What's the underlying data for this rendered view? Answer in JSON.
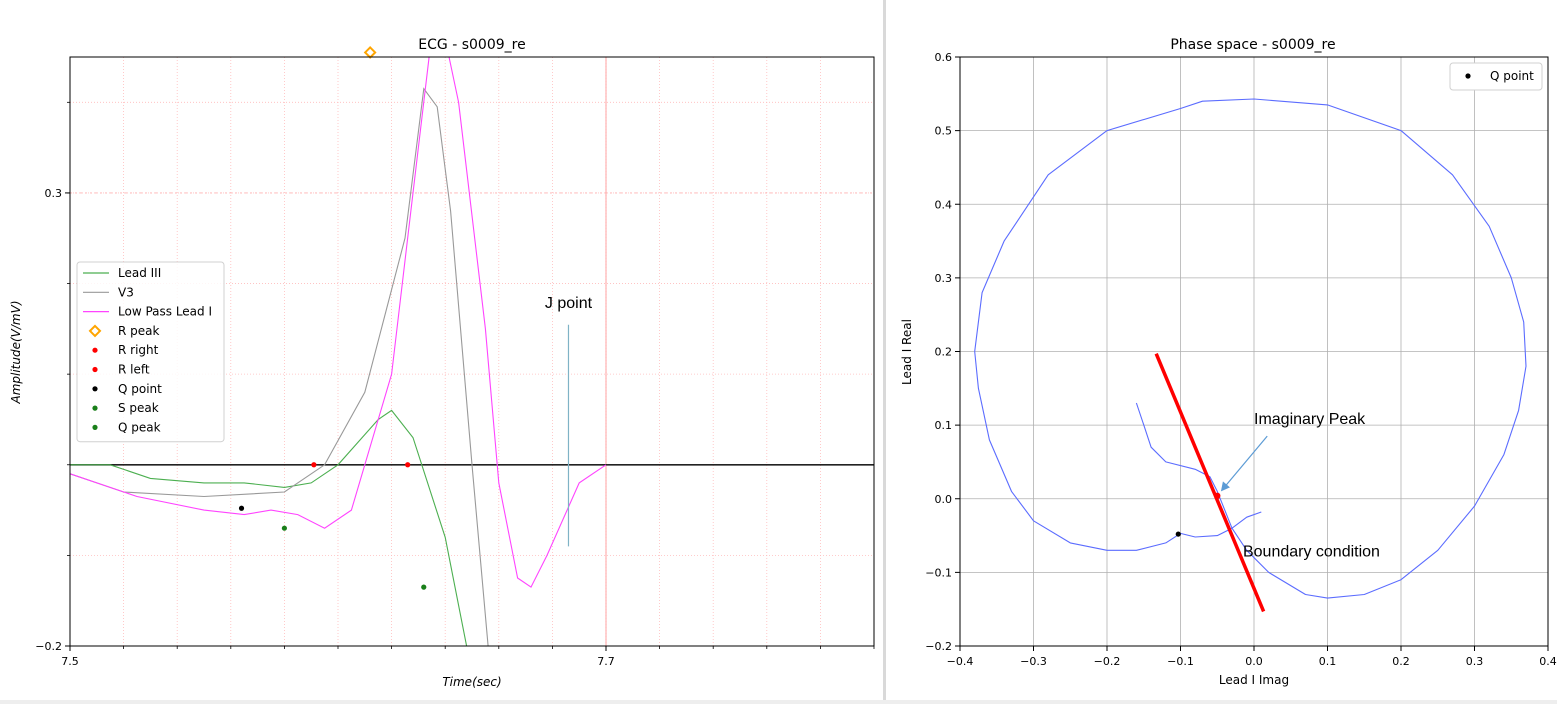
{
  "chart_data": [
    {
      "type": "line",
      "title": "ECG - s0009_re",
      "xlabel": "Time(sec)",
      "ylabel": "Amplitude(V/mV)",
      "xlim": [
        7.5,
        7.8
      ],
      "ylim": [
        -0.2,
        0.45
      ],
      "xticks": [
        7.5,
        7.7
      ],
      "yticks": [
        -0.2,
        0.3
      ],
      "grid": true,
      "legend_position": "center-left",
      "baseline": 0.0,
      "annotations": [
        {
          "text": "J point",
          "x": 7.686,
          "y": 0.16
        }
      ],
      "series": [
        {
          "name": "Lead III",
          "color": "#4caf50",
          "values": [
            [
              7.5,
              0.0
            ],
            [
              7.515,
              0.0
            ],
            [
              7.53,
              -0.015
            ],
            [
              7.55,
              -0.02
            ],
            [
              7.565,
              -0.02
            ],
            [
              7.58,
              -0.025
            ],
            [
              7.59,
              -0.02
            ],
            [
              7.6,
              0.0
            ],
            [
              7.615,
              0.05
            ],
            [
              7.62,
              0.06
            ],
            [
              7.628,
              0.03
            ],
            [
              7.64,
              -0.08
            ],
            [
              7.648,
              -0.2
            ]
          ]
        },
        {
          "name": "V3",
          "color": "#999999",
          "values": [
            [
              7.5,
              -0.01
            ],
            [
              7.52,
              -0.03
            ],
            [
              7.55,
              -0.035
            ],
            [
              7.58,
              -0.03
            ],
            [
              7.595,
              0.0
            ],
            [
              7.61,
              0.08
            ],
            [
              7.625,
              0.25
            ],
            [
              7.632,
              0.415
            ],
            [
              7.637,
              0.395
            ],
            [
              7.642,
              0.28
            ],
            [
              7.65,
              0.0
            ],
            [
              7.656,
              -0.2
            ]
          ]
        },
        {
          "name": "Low Pass Lead I",
          "color": "#ff44ff",
          "values": [
            [
              7.5,
              -0.01
            ],
            [
              7.525,
              -0.035
            ],
            [
              7.55,
              -0.05
            ],
            [
              7.565,
              -0.055
            ],
            [
              7.575,
              -0.05
            ],
            [
              7.585,
              -0.055
            ],
            [
              7.595,
              -0.07
            ],
            [
              7.605,
              -0.05
            ],
            [
              7.62,
              0.1
            ],
            [
              7.628,
              0.3
            ],
            [
              7.635,
              0.475
            ],
            [
              7.64,
              0.47
            ],
            [
              7.645,
              0.4
            ],
            [
              7.655,
              0.15
            ],
            [
              7.66,
              -0.02
            ],
            [
              7.667,
              -0.125
            ],
            [
              7.672,
              -0.135
            ],
            [
              7.678,
              -0.1
            ],
            [
              7.69,
              -0.02
            ],
            [
              7.7,
              0.0
            ]
          ]
        }
      ],
      "markers": [
        {
          "name": "R peak",
          "color": "#ffa500",
          "shape": "diamond",
          "points": [
            [
              7.612,
              0.455
            ]
          ]
        },
        {
          "name": "R right",
          "color": "#ff0000",
          "shape": "dot",
          "points": [
            [
              7.591,
              0.0
            ]
          ]
        },
        {
          "name": "R left",
          "color": "#ff0000",
          "shape": "dot",
          "points": [
            [
              7.626,
              0.0
            ]
          ]
        },
        {
          "name": "Q point",
          "color": "#000000",
          "shape": "dot",
          "points": [
            [
              7.564,
              -0.048
            ]
          ]
        },
        {
          "name": "S peak",
          "color": "#1a7f1a",
          "shape": "dot",
          "points": [
            [
              7.632,
              -0.135
            ]
          ]
        },
        {
          "name": "Q peak",
          "color": "#1a7f1a",
          "shape": "dot",
          "points": [
            [
              7.58,
              -0.07
            ]
          ]
        }
      ]
    },
    {
      "type": "line",
      "title": "Phase space - s0009_re",
      "xlabel": "Lead I Imag",
      "ylabel": "Lead I Real",
      "xlim": [
        -0.4,
        0.4
      ],
      "ylim": [
        -0.2,
        0.6
      ],
      "xticks": [
        -0.4,
        -0.3,
        -0.2,
        -0.1,
        0.0,
        0.1,
        0.2,
        0.3,
        0.4
      ],
      "xtick_labels": [
        "−0.4",
        "−0.3",
        "−0.2",
        "−0.1",
        "0.0",
        "0.1",
        "0.2",
        "0.3",
        "0.4"
      ],
      "yticks": [
        -0.2,
        -0.1,
        0.0,
        0.1,
        0.2,
        0.3,
        0.4,
        0.5,
        0.6
      ],
      "ytick_labels": [
        "−0.2",
        "−0.1",
        "0.0",
        "0.1",
        "0.2",
        "0.3",
        "0.4",
        "0.5",
        "0.6"
      ],
      "grid": true,
      "legend_position": "top-right",
      "annotations": [
        {
          "text": "Imaginary Peak",
          "x": 0.0,
          "y": 0.11
        },
        {
          "text": "Boundary condition",
          "x": -0.015,
          "y": -0.07
        }
      ],
      "series": [
        {
          "name": "",
          "color": "#5b6cff",
          "values": [
            [
              -0.16,
              0.13
            ],
            [
              -0.15,
              0.1
            ],
            [
              -0.14,
              0.07
            ],
            [
              -0.12,
              0.05
            ],
            [
              -0.08,
              0.04
            ],
            [
              -0.06,
              0.03
            ],
            [
              -0.05,
              0.01
            ],
            [
              -0.03,
              -0.04
            ],
            [
              -0.01,
              -0.07
            ],
            [
              0.02,
              -0.1
            ],
            [
              0.07,
              -0.13
            ],
            [
              0.1,
              -0.135
            ],
            [
              0.15,
              -0.13
            ],
            [
              0.2,
              -0.11
            ],
            [
              0.25,
              -0.07
            ],
            [
              0.3,
              -0.01
            ],
            [
              0.34,
              0.06
            ],
            [
              0.36,
              0.12
            ],
            [
              0.37,
              0.18
            ],
            [
              0.367,
              0.24
            ],
            [
              0.35,
              0.3
            ],
            [
              0.32,
              0.37
            ],
            [
              0.27,
              0.44
            ],
            [
              0.2,
              0.5
            ],
            [
              0.1,
              0.535
            ],
            [
              0.0,
              0.543
            ],
            [
              -0.07,
              0.54
            ],
            [
              -0.1,
              0.53
            ],
            [
              -0.2,
              0.5
            ],
            [
              -0.28,
              0.44
            ],
            [
              -0.34,
              0.35
            ],
            [
              -0.37,
              0.28
            ],
            [
              -0.38,
              0.2
            ],
            [
              -0.375,
              0.15
            ],
            [
              -0.36,
              0.08
            ],
            [
              -0.33,
              0.01
            ],
            [
              -0.3,
              -0.03
            ],
            [
              -0.25,
              -0.06
            ],
            [
              -0.2,
              -0.07
            ],
            [
              -0.16,
              -0.07
            ],
            [
              -0.12,
              -0.06
            ],
            [
              -0.1,
              -0.047
            ],
            [
              -0.08,
              -0.052
            ],
            [
              -0.05,
              -0.05
            ],
            [
              -0.03,
              -0.04
            ],
            [
              -0.01,
              -0.025
            ],
            [
              0.01,
              -0.018
            ]
          ]
        },
        {
          "name": "",
          "color": "#ff0000",
          "values": [
            [
              -0.133,
              0.197
            ],
            [
              0.013,
              -0.153
            ]
          ]
        }
      ],
      "markers": [
        {
          "name": "Q point",
          "color": "#000000",
          "shape": "dot",
          "points": [
            [
              -0.103,
              -0.048
            ]
          ]
        },
        {
          "name": "",
          "color": "#ff0000",
          "shape": "dot",
          "points": [
            [
              -0.05,
              0.004
            ]
          ]
        }
      ]
    }
  ]
}
